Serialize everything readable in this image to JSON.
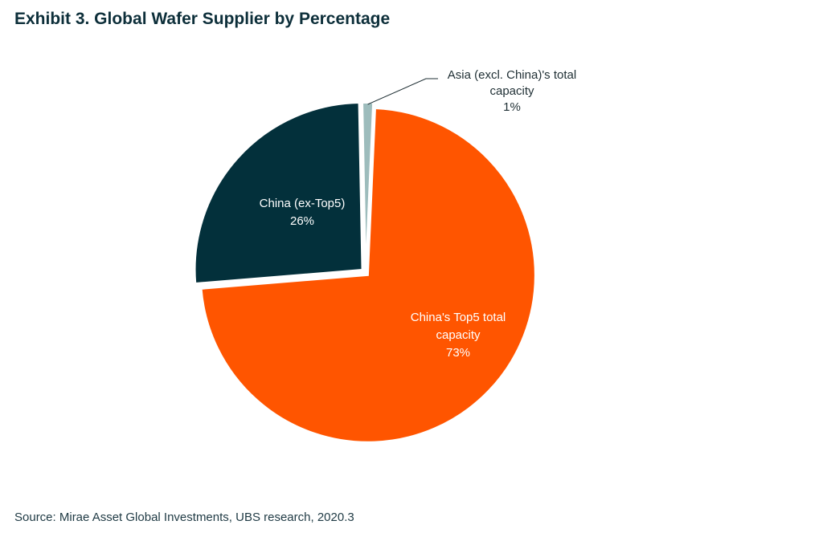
{
  "title": "Exhibit 3. Global Wafer Supplier by Percentage",
  "source": "Source: Mirae Asset Global Investments, UBS research, 2020.3",
  "chart_data": {
    "type": "pie",
    "title": "Exhibit 3. Global Wafer Supplier by Percentage",
    "legend": "none",
    "slices": [
      {
        "name": "China's Top5 total capacity",
        "label_lines": [
          "China's Top5 total",
          "capacity",
          "73%"
        ],
        "value": 73,
        "color": "#ff5500",
        "label_color": "#ffffff"
      },
      {
        "name": "China (ex-Top5)",
        "label_lines": [
          "China (ex-Top5)",
          "26%"
        ],
        "value": 26,
        "color": "#03303b",
        "label_color": "#ffffff"
      },
      {
        "name": "Asia (excl. China)'s total capacity",
        "label_lines": [
          "Asia (excl. China)'s total",
          "capacity",
          "1%"
        ],
        "value": 1,
        "color": "#9dbcbc",
        "label_color": "#1f2f34"
      }
    ]
  }
}
